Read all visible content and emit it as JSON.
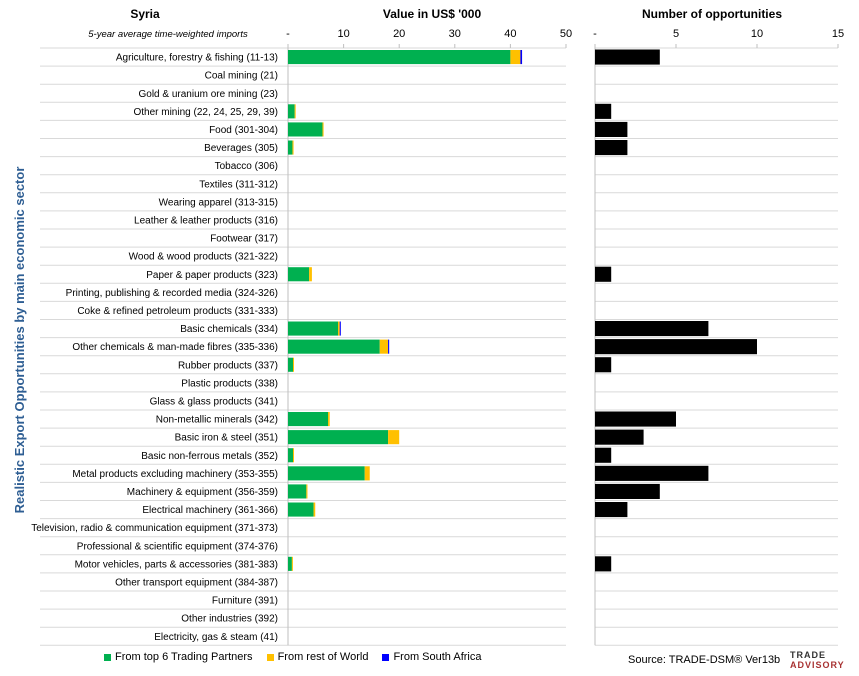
{
  "header": {
    "country": "Syria",
    "subtitle": "5-year average time-weighted imports",
    "value_title": "Value in US$ '000",
    "count_title": "Number of opportunities",
    "y_axis_label": "Realistic Export Opportunities by main economic sector"
  },
  "colors": {
    "top6": "#00b050",
    "rest": "#ffc000",
    "sa": "#0000ff",
    "count": "#000000",
    "grid": "#d9d9d9",
    "ylabel": "#2e5e93"
  },
  "legend": {
    "top6": "From top 6 Trading Partners",
    "rest": "From rest of World",
    "sa": "From South Africa"
  },
  "footer": {
    "source": "Source: TRADE-DSM® Ver13b",
    "logo_line1": "TRADE",
    "logo_line2": "ADVISORY"
  },
  "chart_data": [
    {
      "type": "bar",
      "orientation": "horizontal",
      "stacked": true,
      "title": "Value in US$ '000",
      "xlim": [
        0,
        50
      ],
      "x_ticks": [
        "-",
        "10",
        "20",
        "30",
        "40",
        "50"
      ],
      "grid": true,
      "legend_position": "bottom-left",
      "categories": [
        "Agriculture, forestry & fishing (11-13)",
        "Coal mining (21)",
        "Gold & uranium ore mining (23)",
        "Other mining (22, 24, 25, 29, 39)",
        "Food (301-304)",
        "Beverages (305)",
        "Tobacco (306)",
        "Textiles (311-312)",
        "Wearing apparel (313-315)",
        "Leather & leather products (316)",
        "Footwear (317)",
        "Wood & wood products (321-322)",
        "Paper & paper products (323)",
        "Printing, publishing & recorded media (324-326)",
        "Coke & refined petroleum products (331-333)",
        "Basic chemicals (334)",
        "Other chemicals & man-made fibres (335-336)",
        "Rubber products (337)",
        "Plastic products (338)",
        "Glass & glass products (341)",
        "Non-metallic minerals (342)",
        "Basic iron & steel (351)",
        "Basic non-ferrous metals (352)",
        "Metal products excluding machinery (353-355)",
        "Machinery & equipment (356-359)",
        "Electrical machinery (361-366)",
        "Television, radio & communication equipment (371-373)",
        "Professional & scientific equipment (374-376)",
        "Motor vehicles, parts & accessories (381-383)",
        "Other transport equipment (384-387)",
        "Furniture (391)",
        "Other industries (392)",
        "Electricity, gas & steam (41)"
      ],
      "series": [
        {
          "name": "From top 6 Trading Partners",
          "values": [
            40,
            0,
            0,
            1.2,
            6.2,
            0.8,
            0,
            0,
            0,
            0,
            0,
            0,
            3.8,
            0,
            0,
            9,
            16.5,
            0.9,
            0,
            0,
            7.2,
            18,
            0.9,
            13.8,
            3.3,
            4.6,
            0,
            0,
            0.7,
            0,
            0,
            0,
            0
          ]
        },
        {
          "name": "From rest of World",
          "values": [
            1.8,
            0,
            0,
            0.1,
            0.2,
            0.2,
            0,
            0,
            0,
            0,
            0,
            0,
            0.5,
            0,
            0,
            0.3,
            1.5,
            0.1,
            0,
            0,
            0.3,
            2,
            0.1,
            0.9,
            0.2,
            0.3,
            0,
            0,
            0.1,
            0,
            0,
            0,
            0
          ]
        },
        {
          "name": "From South Africa",
          "values": [
            0.3,
            0,
            0,
            0,
            0,
            0,
            0,
            0,
            0,
            0,
            0,
            0,
            0,
            0,
            0,
            0.2,
            0.2,
            0,
            0,
            0,
            0,
            0,
            0,
            0,
            0,
            0,
            0,
            0,
            0,
            0,
            0,
            0,
            0
          ]
        }
      ]
    },
    {
      "type": "bar",
      "orientation": "horizontal",
      "title": "Number of opportunities",
      "xlim": [
        0,
        15
      ],
      "x_ticks": [
        "-",
        "5",
        "10",
        "15"
      ],
      "grid": true,
      "series": [
        {
          "name": "Number of opportunities",
          "values": [
            4,
            0,
            0,
            1,
            2,
            2,
            0,
            0,
            0,
            0,
            0,
            0,
            1,
            0,
            0,
            7,
            10,
            1,
            0,
            0,
            5,
            3,
            1,
            7,
            4,
            2,
            0,
            0,
            1,
            0,
            0,
            0,
            0
          ]
        }
      ]
    }
  ]
}
